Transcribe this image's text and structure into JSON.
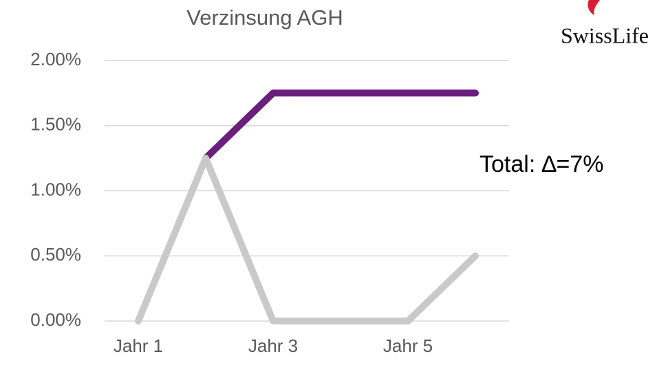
{
  "chart_data": {
    "type": "line",
    "title": "Verzinsung AGH",
    "categories": [
      "Jahr 1",
      null,
      "Jahr 3",
      null,
      "Jahr 5",
      null
    ],
    "series": [
      {
        "color": "#6b1f7c",
        "values": [
          null,
          1.25,
          1.75,
          1.75,
          1.75,
          1.75
        ]
      },
      {
        "color": "#c9c9c9",
        "values": [
          0,
          1.25,
          0,
          0,
          0,
          0.5
        ]
      }
    ],
    "ylim": [
      0,
      2
    ],
    "yticks": [
      {
        "value": 0,
        "label": "0.00%"
      },
      {
        "value": 0.5,
        "label": "0.50%"
      },
      {
        "value": 1,
        "label": "1.00%"
      },
      {
        "value": 1.5,
        "label": "1.50%"
      },
      {
        "value": 2,
        "label": "2.00%"
      }
    ],
    "grid": true,
    "annotation": "Total: ∆=7%"
  },
  "logo": "SwissLife"
}
